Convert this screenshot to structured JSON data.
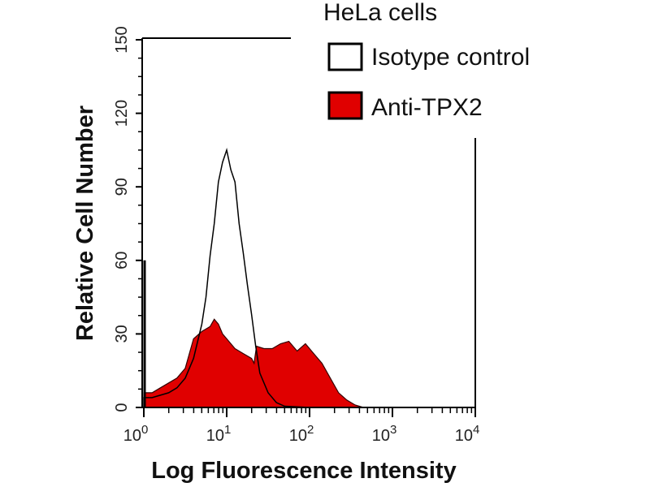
{
  "chart_data": {
    "type": "area",
    "title": "HeLa cells",
    "xlabel": "Log Fluorescence Intensity",
    "ylabel": "Relative Cell Number",
    "x_scale": "log10",
    "xlim_log10": [
      0,
      4
    ],
    "ylim": [
      0,
      150
    ],
    "x_ticks": [
      {
        "base": "10",
        "exp": "0"
      },
      {
        "base": "10",
        "exp": "1"
      },
      {
        "base": "10",
        "exp": "2"
      },
      {
        "base": "10",
        "exp": "3"
      },
      {
        "base": "10",
        "exp": "4"
      }
    ],
    "y_ticks": [
      "0",
      "30",
      "60",
      "90",
      "120",
      "150"
    ],
    "legend": {
      "placement": "top-right",
      "entries": [
        "Isotype control",
        "Anti-TPX2"
      ]
    },
    "series": [
      {
        "name": "Isotype control",
        "color": "#000000",
        "fill": "none",
        "x_log10": [
          0,
          0.1,
          0.2,
          0.3,
          0.4,
          0.5,
          0.6,
          0.7,
          0.75,
          0.8,
          0.85,
          0.9,
          0.95,
          1.0,
          1.05,
          1.1,
          1.15,
          1.2,
          1.25,
          1.3,
          1.35,
          1.4,
          1.5,
          1.6,
          1.7,
          2.0,
          2.5,
          3.0,
          4.0
        ],
        "values": [
          4,
          4,
          5,
          6,
          8,
          12,
          20,
          34,
          45,
          62,
          75,
          92,
          100,
          105,
          97,
          92,
          75,
          63,
          50,
          38,
          25,
          14,
          6,
          2,
          0.5,
          0,
          0,
          0,
          0
        ]
      },
      {
        "name": "Anti-TPX2",
        "color": "#e00000",
        "fill": "#e00000",
        "x_log10": [
          0,
          0.1,
          0.2,
          0.3,
          0.4,
          0.5,
          0.55,
          0.6,
          0.7,
          0.8,
          0.85,
          0.9,
          0.95,
          1.0,
          1.1,
          1.2,
          1.3,
          1.33,
          1.36,
          1.45,
          1.55,
          1.65,
          1.75,
          1.85,
          1.95,
          2.05,
          2.15,
          2.25,
          2.35,
          2.45,
          2.55,
          2.65,
          3.0,
          4.0
        ],
        "values": [
          6,
          6,
          8,
          10,
          12,
          16,
          22,
          28,
          31,
          33,
          36,
          34,
          30,
          28,
          24,
          22,
          20,
          18,
          25,
          24,
          24,
          26,
          27,
          23,
          26,
          22,
          18,
          12,
          6,
          3,
          1,
          0,
          0,
          0
        ]
      }
    ]
  }
}
